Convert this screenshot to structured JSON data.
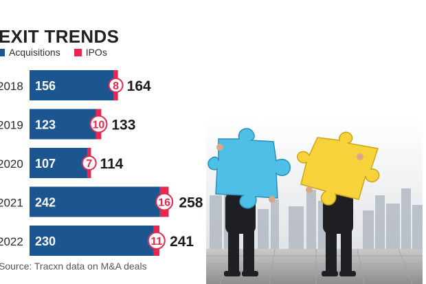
{
  "chart_data": {
    "type": "bar",
    "stacked": true,
    "orientation": "horizontal",
    "title": "EXIT TRENDS",
    "categories": [
      "2018",
      "2019",
      "2020",
      "2021",
      "2022"
    ],
    "series": [
      {
        "name": "Acquisitions",
        "values": [
          156,
          123,
          107,
          242,
          230
        ]
      },
      {
        "name": "IPOs",
        "values": [
          8,
          10,
          7,
          16,
          11
        ]
      }
    ],
    "totals": [
      164,
      133,
      114,
      258,
      241
    ],
    "xlim": [
      0,
      260
    ],
    "grid": false,
    "legend": "top-left",
    "source": "Source: Tracxn data on M&A deals",
    "colors": {
      "acquisitions": "#1c5690",
      "ipos": "#e8264f",
      "bubble": "#ffffff"
    }
  },
  "photo": {
    "puzzle_left_color": "#4fbfe7",
    "puzzle_right_color": "#f7d23a"
  }
}
